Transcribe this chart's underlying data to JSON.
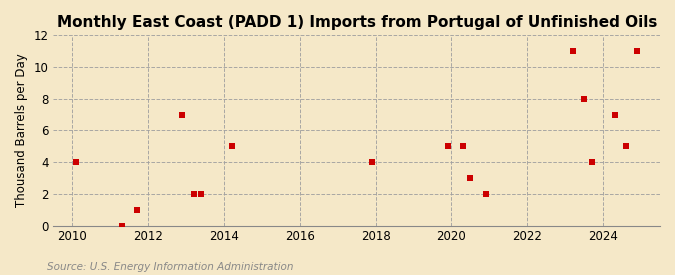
{
  "title": "Monthly East Coast (PADD 1) Imports from Portugal of Unfinished Oils",
  "ylabel": "Thousand Barrels per Day",
  "source": "Source: U.S. Energy Information Administration",
  "background_color": "#f5e8c8",
  "plot_bg_color": "#f5e8c8",
  "point_color": "#cc0000",
  "marker": "s",
  "marker_size": 4,
  "xlim": [
    2009.5,
    2025.5
  ],
  "ylim": [
    0,
    12
  ],
  "yticks": [
    0,
    2,
    4,
    6,
    8,
    10,
    12
  ],
  "xticks": [
    2010,
    2012,
    2014,
    2016,
    2018,
    2020,
    2022,
    2024
  ],
  "data_x": [
    2010.1,
    2011.3,
    2011.7,
    2012.9,
    2013.2,
    2013.4,
    2014.2,
    2017.9,
    2019.9,
    2020.3,
    2020.5,
    2020.9,
    2023.2,
    2023.5,
    2023.7,
    2024.3,
    2024.6,
    2024.9
  ],
  "data_y": [
    4,
    0,
    1,
    7,
    2,
    2,
    5,
    4,
    5,
    5,
    3,
    2,
    11,
    8,
    4,
    7,
    5,
    11
  ],
  "title_fontsize": 11,
  "label_fontsize": 8.5,
  "tick_fontsize": 8.5,
  "source_fontsize": 7.5,
  "grid_color": "#a0a0a0",
  "grid_linestyle": "--",
  "grid_linewidth": 0.7
}
